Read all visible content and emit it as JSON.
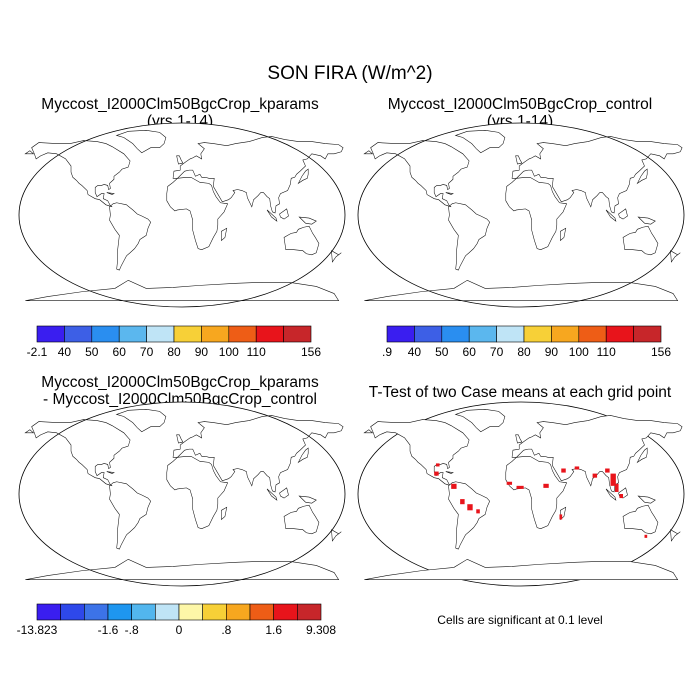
{
  "title": "SON FIRA (W/m^2)",
  "panels": {
    "kparams": {
      "title_line1": "Myccost_I2000Clm50BgcCrop_kparams",
      "title_line2": "(yrs 1-14)"
    },
    "control": {
      "title_line1": "Myccost_I2000Clm50BgcCrop_control",
      "title_line2": "(yrs 1-14)"
    },
    "difference": {
      "title_line1": "Myccost_I2000Clm50BgcCrop_kparams",
      "title_line2": "- Myccost_I2000Clm50BgcCrop_control"
    },
    "ttest": {
      "title_line1": "T-Test of two Case means at each grid point",
      "note": "Cells are significant at 0.1 level",
      "significant_color": "#e8141b"
    }
  },
  "colorbars": {
    "kparams": {
      "colors": [
        "#3a1ef0",
        "#3d5fe6",
        "#2a8ef0",
        "#5bb7ee",
        "#bfe4f6",
        "#f7d037",
        "#f7a71f",
        "#ee5d16",
        "#e8141b",
        "#c7262a"
      ],
      "labels": [
        "-2.1",
        "40",
        "50",
        "60",
        "70",
        "80",
        "90",
        "100",
        "110",
        "156"
      ]
    },
    "control": {
      "colors": [
        "#3a1ef0",
        "#3d5fe6",
        "#2a8ef0",
        "#5bb7ee",
        "#bfe4f6",
        "#f7d037",
        "#f7a71f",
        "#ee5d16",
        "#e8141b",
        "#c7262a"
      ],
      "labels": [
        ".9",
        "40",
        "50",
        "60",
        "70",
        "80",
        "90",
        "100",
        "110",
        "156"
      ]
    },
    "difference": {
      "colors": [
        "#3a1ef0",
        "#2e48ea",
        "#3c73e8",
        "#1e96f0",
        "#52b6ee",
        "#bfe4f6",
        "#fdf7a8",
        "#f7d037",
        "#f7a71f",
        "#ee5d16",
        "#e8141b",
        "#c7262a"
      ],
      "labels": [
        "-13.823",
        "-1.6",
        "-.8",
        "0",
        ".8",
        "1.6",
        "9.308"
      ]
    }
  }
}
